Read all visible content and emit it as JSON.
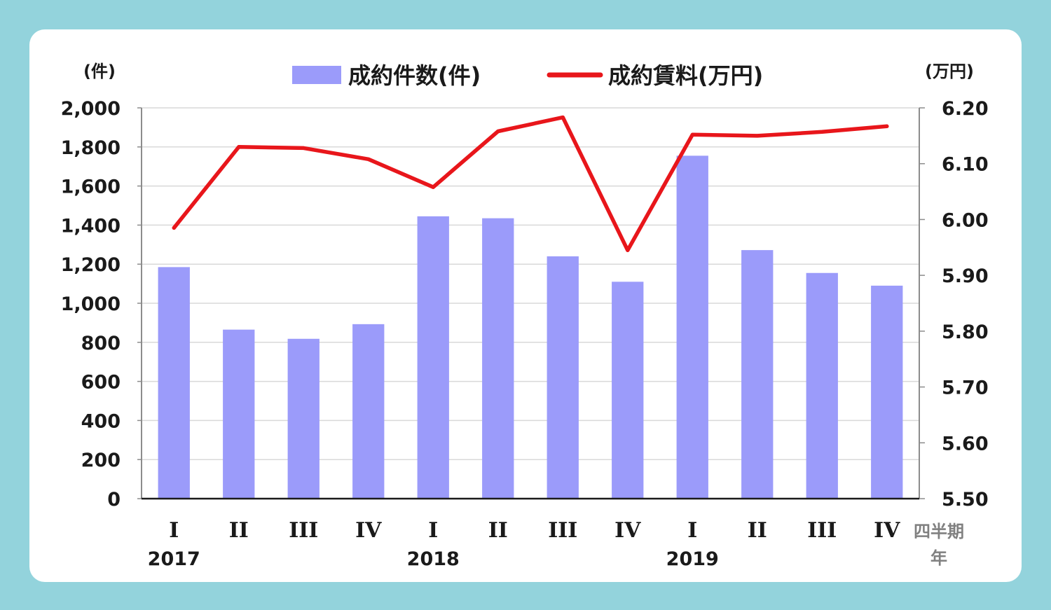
{
  "chart_data": {
    "type": "bar+line",
    "categories": [
      "I",
      "II",
      "III",
      "IV",
      "I",
      "II",
      "III",
      "IV",
      "I",
      "II",
      "III",
      "IV"
    ],
    "year_labels": [
      {
        "index": 0,
        "label": "2017"
      },
      {
        "index": 4,
        "label": "2018"
      },
      {
        "index": 8,
        "label": "2019"
      }
    ],
    "series": [
      {
        "name": "成約件数(件)",
        "type": "bar",
        "axis": "left",
        "color": "#9b9bfa",
        "values": [
          1185,
          865,
          818,
          893,
          1445,
          1435,
          1240,
          1110,
          1755,
          1272,
          1155,
          1090
        ]
      },
      {
        "name": "成約賃料(万円)",
        "type": "line",
        "axis": "right",
        "color": "#e8161b",
        "values": [
          5.985,
          6.13,
          6.128,
          6.108,
          6.058,
          6.158,
          6.183,
          5.945,
          6.152,
          6.15,
          6.157,
          6.167
        ]
      }
    ],
    "y_left": {
      "unit": "(件)",
      "range": [
        0,
        2000
      ],
      "ticks": [
        "0",
        "200",
        "400",
        "600",
        "800",
        "1,000",
        "1,200",
        "1,400",
        "1,600",
        "1,800",
        "2,000"
      ]
    },
    "y_right": {
      "unit": "(万円)",
      "range": [
        5.5,
        6.2
      ],
      "ticks": [
        "5.50",
        "5.60",
        "5.70",
        "5.80",
        "5.90",
        "6.00",
        "6.10",
        "6.20"
      ]
    },
    "x_axis_names": [
      "四半期",
      "年"
    ],
    "legend_placement": "top",
    "grid": true
  }
}
